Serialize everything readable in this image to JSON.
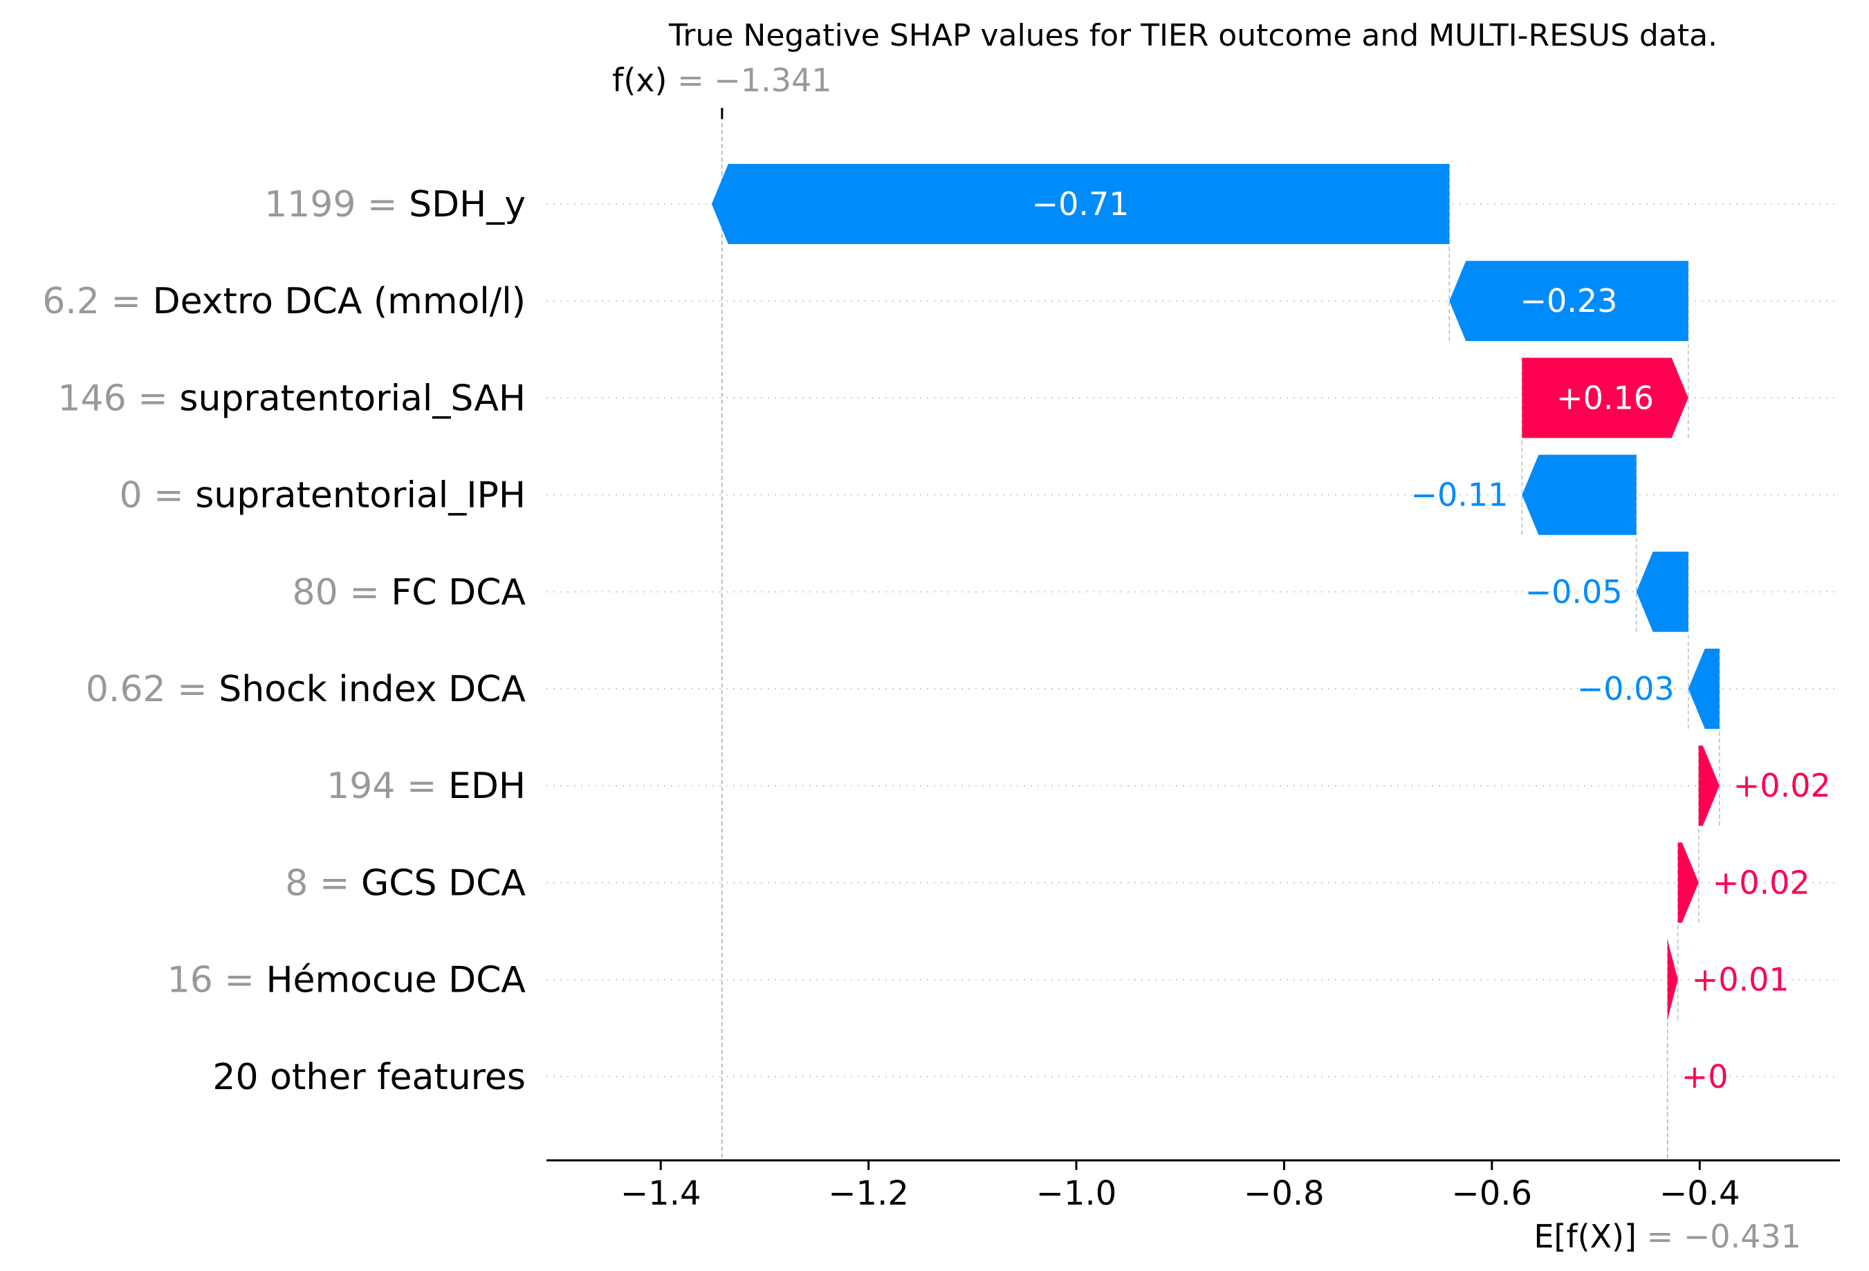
{
  "chart_data": {
    "type": "waterfall",
    "title": "True Negative SHAP values for TIER outcome and MULTI-RESUS data.",
    "fx": {
      "label": "f(x)",
      "value": -1.341,
      "text": "= −1.341"
    },
    "base": {
      "label": "E[f(X)]",
      "value": -0.431,
      "text": "= −0.431"
    },
    "xlim": [
      -1.51,
      -0.265
    ],
    "xticks": [
      -1.4,
      -1.2,
      -1.0,
      -0.8,
      -0.6,
      -0.4
    ],
    "xtick_labels": [
      "−1.4",
      "−1.2",
      "−1.0",
      "−0.8",
      "−0.6",
      "−0.4"
    ],
    "features": [
      {
        "value": "1199",
        "name": "SDH_y",
        "shap": -0.71,
        "label": "−0.71"
      },
      {
        "value": "6.2",
        "name": "Dextro DCA (mmol/l)",
        "shap": -0.23,
        "label": "−0.23"
      },
      {
        "value": "146",
        "name": "supratentorial_SAH",
        "shap": 0.16,
        "label": "+0.16"
      },
      {
        "value": "0",
        "name": "supratentorial_IPH",
        "shap": -0.11,
        "label": "−0.11"
      },
      {
        "value": "80",
        "name": "FC  DCA",
        "shap": -0.05,
        "label": "−0.05"
      },
      {
        "value": "0.62",
        "name": "Shock index DCA",
        "shap": -0.03,
        "label": "−0.03"
      },
      {
        "value": "194",
        "name": "EDH",
        "shap": 0.02,
        "label": "+0.02"
      },
      {
        "value": "8",
        "name": "GCS DCA",
        "shap": 0.02,
        "label": "+0.02"
      },
      {
        "value": "16",
        "name": "Hémocue DCA",
        "shap": 0.01,
        "label": "+0.01"
      },
      {
        "value": "",
        "name": "20 other features",
        "shap": 0.0,
        "label": "+0"
      }
    ],
    "colors": {
      "negative": "#008bfb",
      "positive": "#ff0051",
      "muted": "#999999"
    },
    "grid": "horizontal-dotted"
  }
}
